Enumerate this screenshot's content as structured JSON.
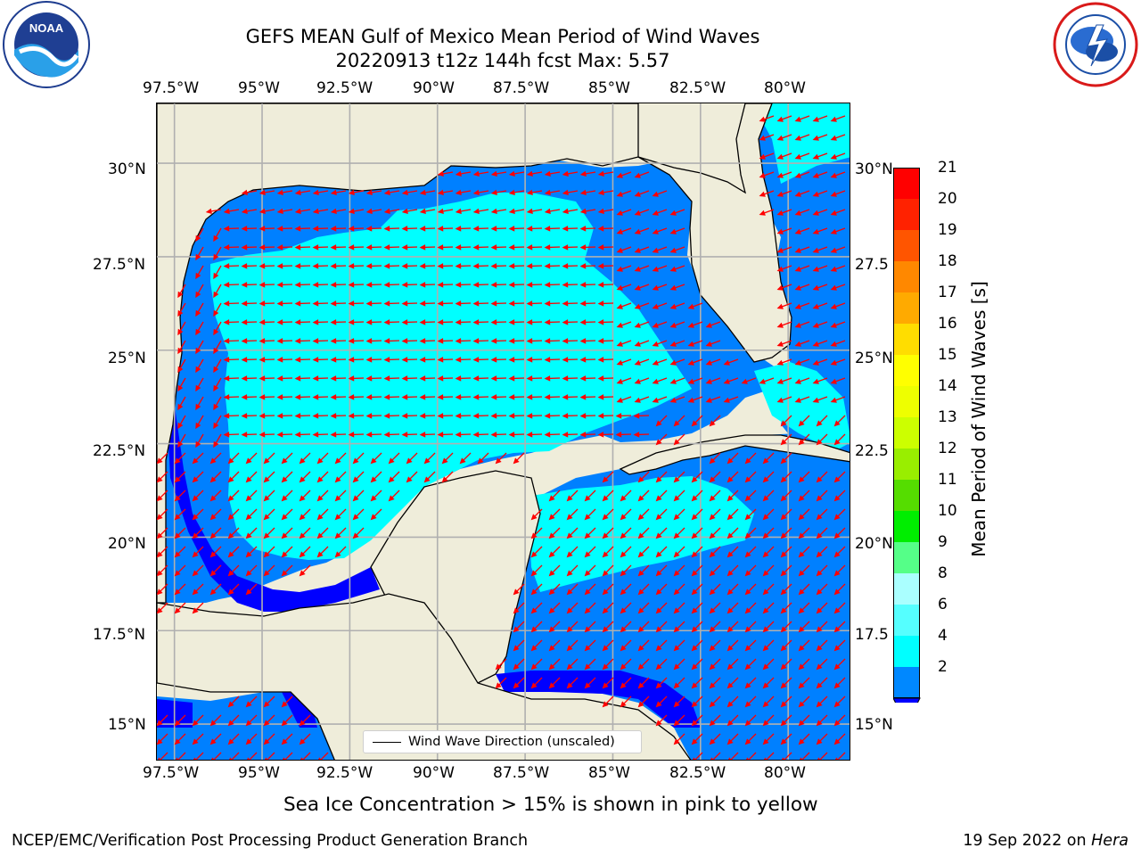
{
  "title": {
    "line1": "GEFS MEAN Gulf of Mexico Mean Period of Wind Waves",
    "line2": "20220913 t12z 144h fcst    Max: 5.57"
  },
  "logos": {
    "noaa": {
      "text": "NOAA",
      "ring_text": "NATIONAL OCEANIC AND ATMOSPHERIC ADMINISTRATION · U.S. DEPARTMENT OF COMMERCE",
      "icon": "noaa-logo-icon"
    },
    "nws": {
      "ring_text": "NATIONAL WEATHER SERVICE",
      "icon": "nws-logo-icon"
    }
  },
  "axes": {
    "lon_ticks": [
      "97.5°W",
      "95°W",
      "92.5°W",
      "90°W",
      "87.5°W",
      "85°W",
      "82.5°W",
      "80°W"
    ],
    "lat_ticks_left": [
      "30°N",
      "27.5°N",
      "25°N",
      "22.5°N",
      "20°N",
      "17.5°N",
      "15°N"
    ],
    "lat_ticks_right": [
      "30°N",
      "27.5",
      "25°N",
      "22.5",
      "20°N",
      "17.5",
      "15°N"
    ],
    "lon_range": [
      -98,
      -78.2
    ],
    "lat_range": [
      14,
      31.6
    ]
  },
  "colorbar": {
    "label": "Mean Period of Wind Waves [s]",
    "ticks": [
      "21",
      "20",
      "19",
      "18",
      "17",
      "16",
      "15",
      "14",
      "13",
      "12",
      "11",
      "10",
      "9",
      "8",
      "6",
      "4",
      "2"
    ],
    "colors": [
      "#ff0000",
      "#ff2200",
      "#ff5500",
      "#ff8800",
      "#ffaa00",
      "#ffdd00",
      "#ffff00",
      "#eeff00",
      "#ccff00",
      "#99ee00",
      "#55dd00",
      "#00ee00",
      "#55ff88",
      "#aaffff",
      "#55ffff",
      "#00ffff",
      "#0088ff",
      "#0000ff"
    ]
  },
  "legend": {
    "label": "Wind Wave Direction (unscaled)"
  },
  "caption": "Sea Ice Concentration > 15% is shown in pink to yellow",
  "footer": {
    "left": "NCEP/EMC/Verification Post Processing Product Generation Branch",
    "right_prefix": "19 Sep 2022 on ",
    "right_host": "Hera"
  },
  "colors": {
    "land": "#efedda",
    "period_2_4": "#0080ff",
    "period_4_6": "#00ffff",
    "period_below_2": "#0000ff",
    "arrow": "#ff0000",
    "grid": "#b0b0b0"
  }
}
